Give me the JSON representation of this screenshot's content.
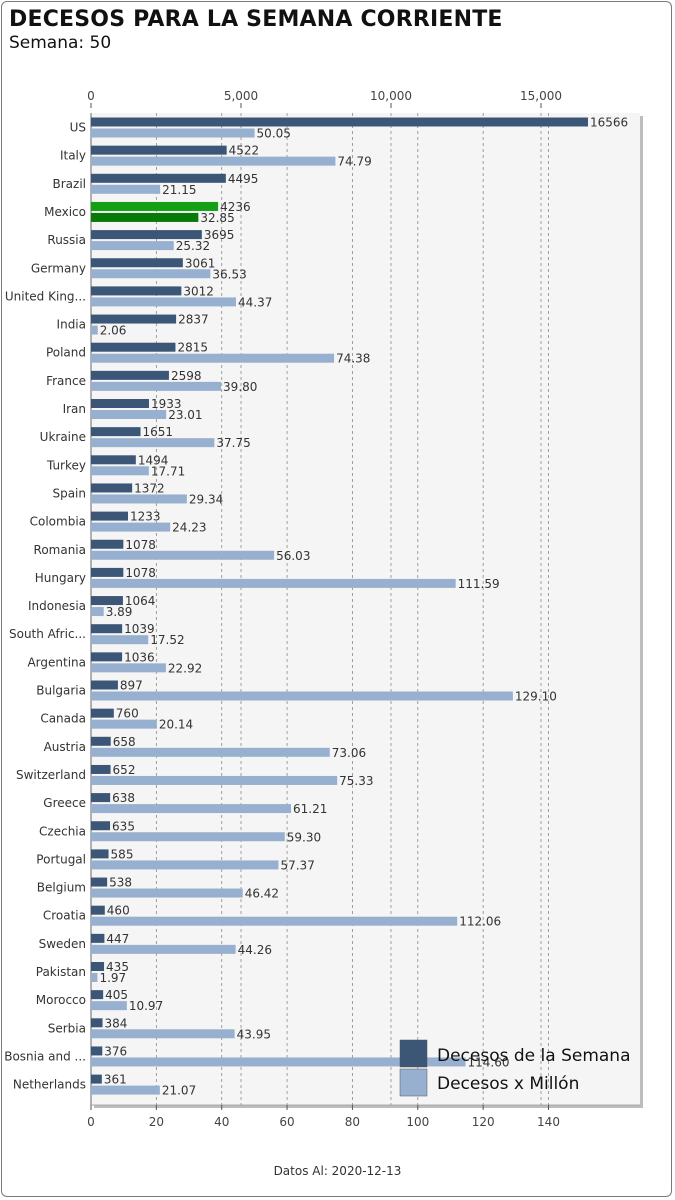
{
  "header": {
    "title": "DECESOS PARA LA SEMANA CORRIENTE",
    "subtitle": "Semana: 50"
  },
  "footer": {
    "text": "Datos Al: 2020-12-13"
  },
  "colors": {
    "deaths": "#3b5676",
    "per_million": "#98b0cf",
    "highlight_deaths": "#14a014",
    "highlight_per_million": "#087a08",
    "plot_bg": "#f5f5f5"
  },
  "chart_data": {
    "type": "bar",
    "orientation": "horizontal",
    "title": "DECESOS PARA LA SEMANA CORRIENTE",
    "highlight": "Mexico",
    "categories": [
      "US",
      "Italy",
      "Brazil",
      "Mexico",
      "Russia",
      "Germany",
      "United King...",
      "India",
      "Poland",
      "France",
      "Iran",
      "Ukraine",
      "Turkey",
      "Spain",
      "Colombia",
      "Romania",
      "Hungary",
      "Indonesia",
      "South Afric...",
      "Argentina",
      "Bulgaria",
      "Canada",
      "Austria",
      "Switzerland",
      "Greece",
      "Czechia",
      "Portugal",
      "Belgium",
      "Croatia",
      "Sweden",
      "Pakistan",
      "Morocco",
      "Serbia",
      "Bosnia and ...",
      "Netherlands"
    ],
    "series": [
      {
        "name": "Decesos de la Semana",
        "axis": "top",
        "values": [
          16566,
          4522,
          4495,
          4236,
          3695,
          3061,
          3012,
          2837,
          2815,
          2598,
          1933,
          1651,
          1494,
          1372,
          1233,
          1078,
          1078,
          1064,
          1039,
          1036,
          897,
          760,
          658,
          652,
          638,
          635,
          585,
          538,
          460,
          447,
          435,
          405,
          384,
          376,
          361
        ],
        "labels": [
          "16566",
          "4522",
          "4495",
          "4236",
          "3695",
          "3061",
          "3012",
          "2837",
          "2815",
          "2598",
          "1933",
          "1651",
          "1494",
          "1372",
          "1233",
          "1078",
          "1078",
          "1064",
          "1039",
          "1036",
          "897",
          "760",
          "658",
          "652",
          "638",
          "635",
          "585",
          "538",
          "460",
          "447",
          "435",
          "405",
          "384",
          "376",
          "361"
        ]
      },
      {
        "name": "Decesos x Millón",
        "axis": "bottom",
        "values": [
          50.05,
          74.79,
          21.15,
          32.85,
          25.32,
          36.53,
          44.37,
          2.06,
          74.38,
          39.8,
          23.01,
          37.75,
          17.71,
          29.34,
          24.23,
          56.03,
          111.59,
          3.89,
          17.52,
          22.92,
          129.1,
          20.14,
          73.06,
          75.33,
          61.21,
          59.3,
          57.37,
          46.42,
          112.06,
          44.26,
          1.97,
          10.97,
          43.95,
          114.6,
          21.07
        ],
        "labels": [
          "50.05",
          "74.79",
          "21.15",
          "32.85",
          "25.32",
          "36.53",
          "44.37",
          "2.06",
          "74.38",
          "39.80",
          "23.01",
          "37.75",
          "17.71",
          "29.34",
          "24.23",
          "56.03",
          "111.59",
          "3.89",
          "17.52",
          "22.92",
          "129.10",
          "20.14",
          "73.06",
          "75.33",
          "61.21",
          "59.30",
          "57.37",
          "46.42",
          "112.06",
          "44.26",
          "1.97",
          "10.97",
          "43.95",
          "114.60",
          "21.07"
        ]
      }
    ],
    "top_axis": {
      "range": [
        0,
        18300
      ],
      "ticks": [
        0,
        5000,
        10000,
        15000
      ],
      "tick_labels": [
        "0",
        "5,000",
        "10,000",
        "15,000"
      ]
    },
    "bottom_axis": {
      "range": [
        0,
        168
      ],
      "ticks": [
        0,
        20,
        40,
        60,
        80,
        100,
        120,
        140
      ],
      "tick_labels": [
        "0",
        "20",
        "40",
        "60",
        "80",
        "100",
        "120",
        "140"
      ]
    },
    "grid": true,
    "legend": {
      "position": "bottom-right",
      "entries": [
        "Decesos de la Semana",
        "Decesos x Millón"
      ]
    }
  }
}
